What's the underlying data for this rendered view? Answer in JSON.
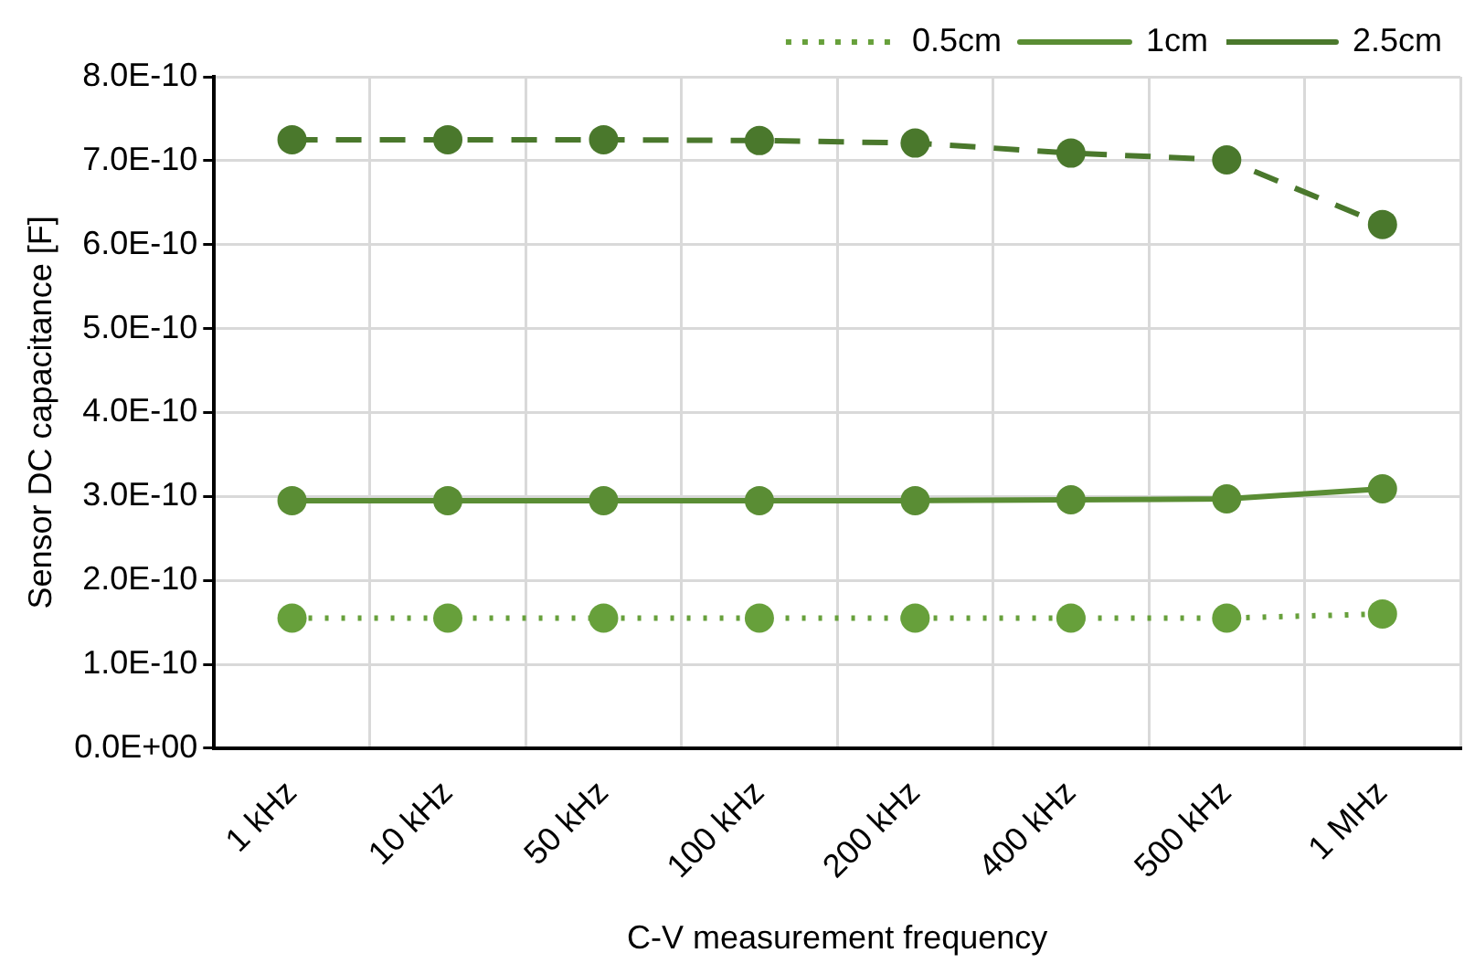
{
  "chart_data": {
    "type": "line",
    "xlabel": "C-V measurement frequency",
    "ylabel": "Sensor DC capacitance [F]",
    "categories": [
      "1 kHz",
      "10 kHz",
      "50 kHz",
      "100 kHz",
      "200 kHz",
      "400 kHz",
      "500 kHz",
      "1 MHz"
    ],
    "series": [
      {
        "name": "0.5cm",
        "color": "#67a03b",
        "line_style": "dotted",
        "values": [
          1.55e-10,
          1.55e-10,
          1.55e-10,
          1.55e-10,
          1.55e-10,
          1.55e-10,
          1.55e-10,
          1.6e-10
        ]
      },
      {
        "name": "1cm",
        "color": "#5a8d34",
        "line_style": "solid",
        "values": [
          2.95e-10,
          2.95e-10,
          2.95e-10,
          2.95e-10,
          2.95e-10,
          2.96e-10,
          2.97e-10,
          3.09e-10
        ]
      },
      {
        "name": "2.5cm",
        "color": "#4a782c",
        "line_style": "dashed",
        "values": [
          7.25e-10,
          7.25e-10,
          7.25e-10,
          7.24e-10,
          7.21e-10,
          7.09e-10,
          7.01e-10,
          6.24e-10
        ]
      }
    ],
    "ylim": [
      0,
      8e-10
    ],
    "yticks": [
      {
        "value": 0,
        "label": "0.0E+00"
      },
      {
        "value": 1e-10,
        "label": "1.0E-10"
      },
      {
        "value": 2e-10,
        "label": "2.0E-10"
      },
      {
        "value": 3e-10,
        "label": "3.0E-10"
      },
      {
        "value": 4e-10,
        "label": "4.0E-10"
      },
      {
        "value": 5e-10,
        "label": "5.0E-10"
      },
      {
        "value": 6e-10,
        "label": "6.0E-10"
      },
      {
        "value": 7e-10,
        "label": "7.0E-10"
      },
      {
        "value": 8e-10,
        "label": "8.0E-10"
      }
    ],
    "grid": true,
    "legend": "top right",
    "marker": "circle"
  }
}
